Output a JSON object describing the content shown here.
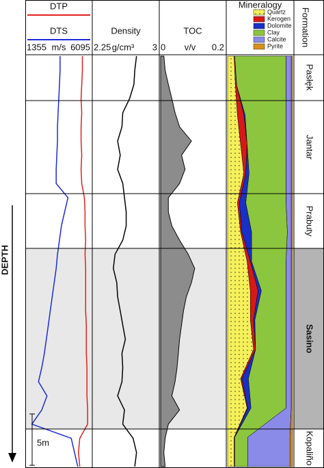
{
  "chart_data": [
    {
      "type": "line",
      "series": [
        {
          "name": "DTP",
          "color": "#e0201c",
          "values": [
            5466,
            5466,
            5418,
            5370,
            5418,
            5370,
            5370,
            5418,
            5370,
            5418,
            5611,
            5660,
            5660,
            5708,
            5660,
            5708,
            5708,
            5708,
            5708,
            5756,
            5756,
            5756,
            5805,
            5805,
            5805,
            5853,
            5853,
            5273,
            5176,
            5273
          ]
        },
        {
          "name": "DTS",
          "color": "#1c2ad8",
          "values": [
            3822,
            3822,
            3774,
            3725,
            3677,
            3628,
            3628,
            3580,
            3532,
            3532,
            4402,
            4160,
            3919,
            3774,
            3628,
            3532,
            3387,
            3241,
            3096,
            2951,
            2806,
            2661,
            2467,
            2226,
            2854,
            2467,
            1742,
            4644,
            4886,
            5128
          ]
        }
      ],
      "xlim": [
        1355,
        6095
      ],
      "xticks": [
        1355,
        6095
      ],
      "x_label": "m/s"
    },
    {
      "type": "line",
      "title": "Density",
      "color": "#000000",
      "values": [
        2.75,
        2.73,
        2.72,
        2.67,
        2.59,
        2.58,
        2.53,
        2.56,
        2.53,
        2.59,
        2.61,
        2.63,
        2.63,
        2.59,
        2.5,
        2.48,
        2.52,
        2.53,
        2.56,
        2.59,
        2.62,
        2.58,
        2.59,
        2.58,
        2.53,
        2.61,
        2.59,
        2.71,
        2.75,
        2.73
      ],
      "xlim": [
        2.25,
        3
      ],
      "xticks": [
        2.25,
        3
      ],
      "x_label": "g/cm³"
    },
    {
      "type": "area",
      "title": "TOC",
      "color": "#8c8c8c",
      "values": [
        0.01,
        0.014,
        0.024,
        0.035,
        0.045,
        0.059,
        0.096,
        0.065,
        0.076,
        0.059,
        0.024,
        0.024,
        0.035,
        0.059,
        0.086,
        0.106,
        0.096,
        0.08,
        0.071,
        0.065,
        0.059,
        0.055,
        0.051,
        0.045,
        0.035,
        0.059,
        0.024,
        0.014,
        0.01,
        0.014
      ],
      "xlim": [
        0,
        0.2
      ],
      "xticks": [
        0,
        0.2
      ],
      "x_label": "v/v"
    },
    {
      "type": "stacked_area",
      "title": "Mineralogy",
      "xlim": [
        0,
        1
      ],
      "series": [
        {
          "name": "Quartz",
          "color": "#f5f05a",
          "values": [
            0.1,
            0.12,
            0.15,
            0.2,
            0.25,
            0.15,
            0.2,
            0.3,
            0.35,
            0.35,
            0.4,
            0.2,
            0.3,
            0.1,
            0.1
          ]
        },
        {
          "name": "Kerogen",
          "color": "#d81818",
          "values": [
            0.01,
            0.02,
            0.1,
            0.1,
            0.03,
            0.03,
            0.02,
            0.05,
            0.12,
            0.05,
            0.03,
            0.02,
            0.01,
            0.01,
            0.01
          ]
        },
        {
          "name": "Dolomite",
          "color": "#1830c8",
          "values": [
            0,
            0,
            0.02,
            0,
            0.05,
            0.1,
            0.15,
            0.02,
            0.05,
            0.02,
            0,
            0.1,
            0.05,
            0,
            0
          ]
        },
        {
          "name": "Clay",
          "color": "#8cc63e",
          "values": [
            0.79,
            0.76,
            0.63,
            0.6,
            0.57,
            0.62,
            0.55,
            0.53,
            0.38,
            0.48,
            0.47,
            0.58,
            0.54,
            0.2,
            0.2
          ]
        },
        {
          "name": "Calcite",
          "color": "#8a8ae8",
          "values": [
            0.08,
            0.08,
            0.08,
            0.08,
            0.08,
            0.08,
            0.06,
            0.08,
            0.08,
            0.08,
            0.08,
            0.08,
            0.08,
            0.65,
            0.65
          ]
        },
        {
          "name": "Pyrite",
          "color": "#d9901c",
          "values": [
            0.02,
            0.02,
            0.02,
            0.02,
            0.02,
            0.02,
            0.02,
            0.02,
            0.02,
            0.02,
            0.02,
            0.02,
            0.02,
            0.04,
            0.04
          ]
        }
      ]
    }
  ],
  "formations": {
    "title": "Formation",
    "names": [
      "Pasłęk",
      "Jantar",
      "Prabuty",
      "Sasino",
      "Kopaliño"
    ]
  },
  "depth_label": "DEPTH",
  "scale_label": "5m"
}
